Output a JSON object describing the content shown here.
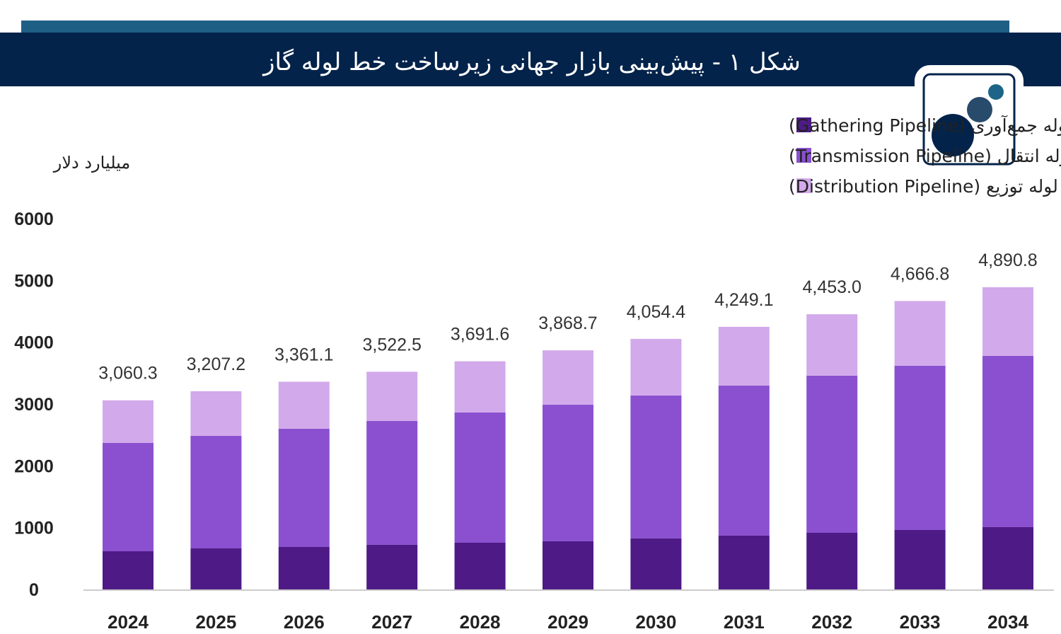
{
  "header": {
    "title": "شکل ۱ -  پیش‌بینی بازار جهانی زیرساخت خط لوله گاز"
  },
  "colors": {
    "header_bg": "#03234a",
    "header_strip": "#1e5f86",
    "gathering": "#4e1a86",
    "transmission": "#8a50cf",
    "distribution": "#d2a9ea"
  },
  "chart_data": {
    "type": "bar",
    "stacked": true,
    "title": "پیش‌بینی بازار جهانی زیرساخت خط لوله گاز",
    "ylabel": "میلیارد دلار",
    "xlabel": "",
    "ylim": [
      0,
      6000
    ],
    "yticks": [
      "0",
      "1000",
      "2000",
      "3000",
      "4000",
      "5000",
      "6000"
    ],
    "legend_position": "top-right",
    "categories": [
      "2024",
      "2025",
      "2026",
      "2027",
      "2028",
      "2029",
      "2030",
      "2031",
      "2032",
      "2033",
      "2034"
    ],
    "series": [
      {
        "name": "خط لوله جمع‌آوری (Gathering Pipeline)",
        "values": [
          618,
          664,
          687,
          722,
          756,
          779,
          825,
          871,
          916,
          962,
          1008
        ]
      },
      {
        "name": "خط لوله انتقال (Transmission Pipeline)",
        "values": [
          1753,
          1822,
          1913,
          2004,
          2108,
          2211,
          2314,
          2428,
          2543,
          2658,
          2772
        ]
      },
      {
        "name": "خط لوله توزیع (Distribution Pipeline)",
        "values": [
          689.3,
          721.2,
          761.1,
          796.5,
          827.6,
          878.7,
          915.4,
          950.1,
          994.0,
          1046.8,
          1110.8
        ]
      }
    ],
    "totals": [
      "3,060.3",
      "3,207.2",
      "3,361.1",
      "3,522.5",
      "3,691.6",
      "3,868.7",
      "4,054.4",
      "4,249.1",
      "4,453.0",
      "4,666.8",
      "4,890.8"
    ]
  }
}
